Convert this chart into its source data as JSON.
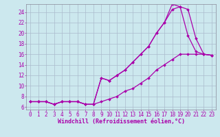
{
  "background_color": "#cce8ee",
  "grid_color": "#aabbcc",
  "line_color": "#aa00aa",
  "markersize": 2,
  "linewidth": 0.9,
  "xlabel": "Windchill (Refroidissement éolien,°C)",
  "xlabel_fontsize": 6,
  "tick_fontsize": 5.5,
  "xlim": [
    -0.5,
    23.5
  ],
  "ylim": [
    5.5,
    25.5
  ],
  "yticks": [
    6,
    8,
    10,
    12,
    14,
    16,
    18,
    20,
    22,
    24
  ],
  "xticks": [
    0,
    1,
    2,
    3,
    4,
    5,
    6,
    7,
    8,
    9,
    10,
    11,
    12,
    13,
    14,
    15,
    16,
    17,
    18,
    19,
    20,
    21,
    22,
    23
  ],
  "curve1_x": [
    0,
    1,
    2,
    3,
    4,
    5,
    6,
    7,
    8,
    9,
    10,
    11,
    12,
    13,
    14,
    15,
    16,
    17,
    18,
    19,
    20,
    21,
    22,
    23
  ],
  "curve1_y": [
    7,
    7,
    7,
    6.5,
    7,
    7,
    7,
    6.5,
    6.5,
    11.5,
    11,
    12,
    13,
    14.5,
    16,
    17.5,
    20,
    22,
    25.5,
    25,
    19.5,
    16.5,
    16,
    15.8
  ],
  "curve2_x": [
    0,
    1,
    2,
    3,
    4,
    5,
    6,
    7,
    8,
    9,
    10,
    11,
    12,
    13,
    14,
    15,
    16,
    17,
    18,
    19,
    20,
    21,
    22,
    23
  ],
  "curve2_y": [
    7,
    7,
    7,
    6.5,
    7,
    7,
    7,
    6.5,
    6.5,
    11.5,
    11,
    12,
    13,
    14.5,
    16,
    17.5,
    20,
    22,
    24.5,
    25,
    24.5,
    19,
    16,
    15.8
  ],
  "curve3_x": [
    0,
    1,
    2,
    3,
    4,
    5,
    6,
    7,
    8,
    9,
    10,
    11,
    12,
    13,
    14,
    15,
    16,
    17,
    18,
    19,
    20,
    21,
    22,
    23
  ],
  "curve3_y": [
    7,
    7,
    7,
    6.5,
    7,
    7,
    7,
    6.5,
    6.5,
    7,
    7.5,
    8,
    9,
    9.5,
    10.5,
    11.5,
    13,
    14,
    15,
    16,
    16,
    16,
    16,
    15.8
  ]
}
